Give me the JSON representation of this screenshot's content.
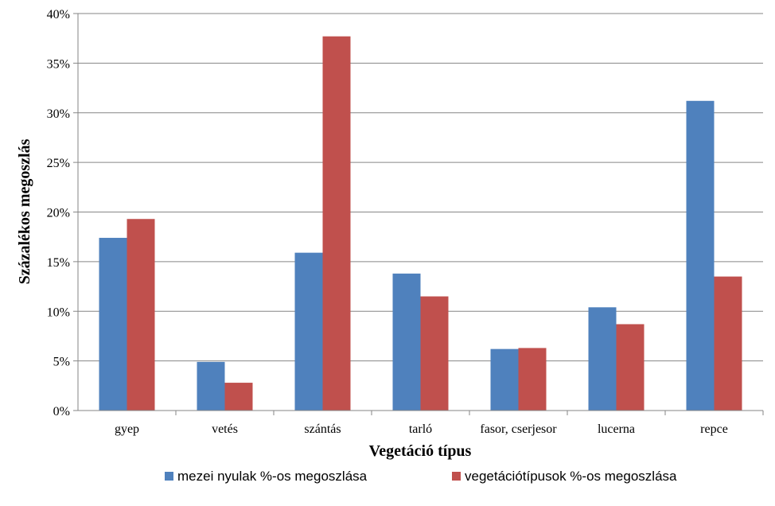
{
  "chart_data": {
    "type": "bar",
    "categories": [
      "gyep",
      "vetés",
      "szántás",
      "tarló",
      "fasor, cserjesor",
      "lucerna",
      "repce"
    ],
    "series": [
      {
        "name": "mezei nyulak %-os megoszlása",
        "values": [
          17.4,
          4.9,
          15.9,
          13.8,
          6.2,
          10.4,
          31.2
        ],
        "color": "#4f81bd"
      },
      {
        "name": "vegetációtípusok %-os megoszlása",
        "values": [
          19.3,
          2.8,
          37.7,
          11.5,
          6.3,
          8.7,
          13.5
        ],
        "color": "#c0504d"
      }
    ],
    "xlabel": "Vegetáció típus",
    "ylabel": "Százalékos megoszlás",
    "ylim": [
      0,
      40
    ],
    "yticks": [
      "0%",
      "5%",
      "10%",
      "15%",
      "20%",
      "25%",
      "30%",
      "35%",
      "40%"
    ],
    "grid": true,
    "legend": "bottom"
  }
}
